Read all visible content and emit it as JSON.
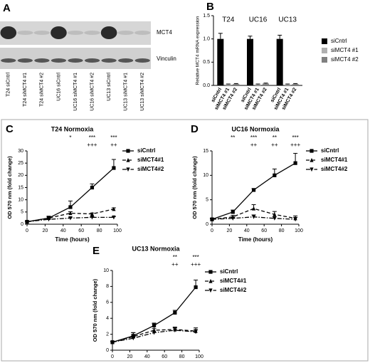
{
  "blot": {
    "panel": "A",
    "rows": [
      "MCT4",
      "Vinculin"
    ],
    "lanes": [
      "T24 siCntrl",
      "T24 siMCT4 #1",
      "T24 siMCT4 #2",
      "UC16 siCntrl",
      "UC16 siMCT4 #1",
      "UC16 siMCT4 #2",
      "UC13 siCntrl",
      "UC13 siMCT4 #1",
      "UC13 siMCT4 #2"
    ]
  },
  "chart_data": [
    {
      "type": "bar",
      "panel": "B",
      "ylabel": "Relative MCT4 mRNA expression",
      "categories": [
        "T24",
        "UC16",
        "UC13"
      ],
      "series": [
        {
          "name": "siCntrl",
          "color": "#000000",
          "values": [
            1.0,
            1.0,
            1.0
          ],
          "errors": [
            0.12,
            0.06,
            0.08
          ]
        },
        {
          "name": "siMCT4 #1",
          "color": "#b0b0b0",
          "values": [
            0.02,
            0.02,
            0.02
          ],
          "errors": [
            0.01,
            0.01,
            0.01
          ]
        },
        {
          "name": "siMCT4 #2",
          "color": "#808080",
          "values": [
            0.03,
            0.04,
            0.03
          ],
          "errors": [
            0.01,
            0.01,
            0.01
          ]
        }
      ],
      "ylim": [
        0,
        1.5
      ],
      "yticks": [
        {
          "value": 0,
          "label": "0.0"
        },
        {
          "value": 0.5,
          "label": "0.5"
        },
        {
          "value": 1,
          "label": "1.0"
        },
        {
          "value": 1.5,
          "label": "1.5"
        }
      ]
    },
    {
      "type": "line",
      "panel": "C",
      "title": "T24 Normoxia",
      "xlabel": "Time (hours)",
      "ylabel": "OD 570 nm (fold change)",
      "x": [
        0,
        24,
        48,
        72,
        96
      ],
      "series": [
        {
          "name": "siCntrl",
          "color": "#000000",
          "line_style": "solid",
          "marker": "square",
          "values": [
            1,
            2.5,
            7,
            15,
            23
          ],
          "errors": [
            0.3,
            0.8,
            2.5,
            1.5,
            3.5
          ]
        },
        {
          "name": "siMCT4#1",
          "color": "#000000",
          "line_style": "dashed",
          "marker": "triangle",
          "values": [
            1,
            2.5,
            4.5,
            4.2,
            6.2
          ],
          "errors": [
            0.2,
            0.5,
            0.6,
            0.4,
            0.5
          ]
        },
        {
          "name": "siMCT4#2",
          "color": "#000000",
          "line_style": "dashdot",
          "marker": "triangle-down",
          "values": [
            1,
            2,
            2.5,
            2.8,
            2.8
          ],
          "errors": [
            0.2,
            0.3,
            0.4,
            0.3,
            0.3
          ]
        }
      ],
      "annotations": [
        [
          null,
          null,
          "*",
          "***",
          "***"
        ],
        [
          null,
          null,
          null,
          "+++",
          "++"
        ]
      ],
      "xlim": [
        0,
        100
      ],
      "xticks": [
        0,
        20,
        40,
        60,
        80,
        100
      ],
      "ylim": [
        0,
        30
      ],
      "yticks": [
        0,
        5,
        10,
        15,
        20,
        25,
        30
      ]
    },
    {
      "type": "line",
      "panel": "D",
      "title": "UC16 Normoxia",
      "xlabel": "Time (hours)",
      "ylabel": "OD 570 nm (fold change)",
      "x": [
        0,
        24,
        48,
        72,
        96
      ],
      "series": [
        {
          "name": "siCntrl",
          "color": "#000000",
          "line_style": "solid",
          "marker": "square",
          "values": [
            1,
            2.5,
            7,
            10,
            12.5
          ],
          "errors": [
            0.2,
            0.4,
            0.3,
            1.3,
            2
          ]
        },
        {
          "name": "siMCT4#1",
          "color": "#000000",
          "line_style": "dashed",
          "marker": "triangle",
          "values": [
            1,
            1.5,
            3.2,
            2,
            1.2
          ],
          "errors": [
            0.2,
            0.3,
            0.8,
            0.6,
            0.5
          ]
        },
        {
          "name": "siMCT4#2",
          "color": "#000000",
          "line_style": "dashdot",
          "marker": "triangle-down",
          "values": [
            1,
            1.2,
            1.5,
            1.2,
            1
          ],
          "errors": [
            0.1,
            0.2,
            0.4,
            0.3,
            0.4
          ]
        }
      ],
      "annotations": [
        [
          null,
          "**",
          "***",
          "**",
          "***"
        ],
        [
          null,
          null,
          "++",
          "++",
          "+++"
        ]
      ],
      "xlim": [
        0,
        100
      ],
      "xticks": [
        0,
        20,
        40,
        60,
        80,
        100
      ],
      "ylim": [
        0,
        15
      ],
      "yticks": [
        0,
        5,
        10,
        15
      ]
    },
    {
      "type": "line",
      "panel": "E",
      "title": "UC13 Normoxia",
      "xlabel": "Time (hours)",
      "ylabel": "OD 570 nm (fold change)",
      "x": [
        0,
        24,
        48,
        72,
        96
      ],
      "series": [
        {
          "name": "siCntrl",
          "color": "#000000",
          "line_style": "solid",
          "marker": "square",
          "values": [
            1,
            1.8,
            3.1,
            4.7,
            7.9
          ],
          "errors": [
            0.1,
            0.4,
            0.3,
            0.3,
            0.9
          ]
        },
        {
          "name": "siMCT4#1",
          "color": "#000000",
          "line_style": "dashed",
          "marker": "triangle",
          "values": [
            1,
            1.7,
            2.5,
            2.6,
            2.4
          ],
          "errors": [
            0.1,
            0.5,
            0.8,
            0.3,
            0.4
          ]
        },
        {
          "name": "siMCT4#2",
          "color": "#000000",
          "line_style": "dashdot",
          "marker": "triangle-down",
          "values": [
            1,
            1.5,
            2.2,
            2.5,
            2.3
          ],
          "errors": [
            0.1,
            0.4,
            0.5,
            0.3,
            0.3
          ]
        }
      ],
      "annotations": [
        [
          null,
          null,
          null,
          "**",
          "***"
        ],
        [
          null,
          null,
          null,
          "++",
          "+++"
        ]
      ],
      "xlim": [
        0,
        100
      ],
      "xticks": [
        0,
        20,
        40,
        60,
        80,
        100
      ],
      "ylim": [
        0,
        10
      ],
      "yticks": [
        0,
        2,
        4,
        6,
        8,
        10
      ]
    }
  ]
}
